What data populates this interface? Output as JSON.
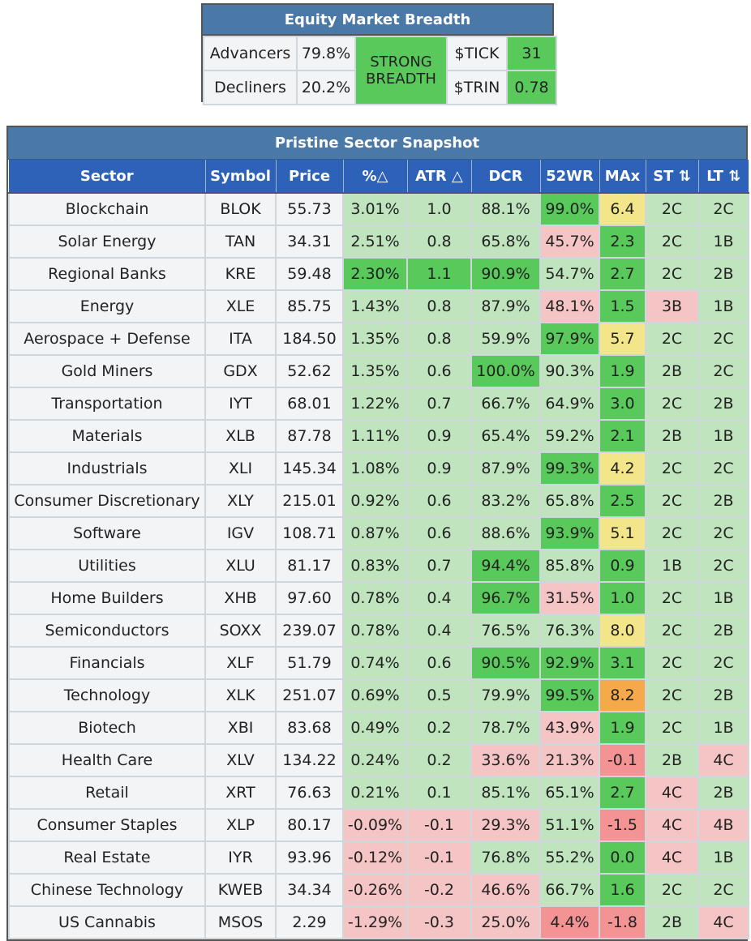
{
  "breadth": {
    "title": "Equity Market Breadth",
    "advancers_label": "Advancers",
    "advancers_value": "79.8%",
    "decliners_label": "Decliners",
    "decliners_value": "20.2%",
    "status_line1": "STRONG",
    "status_line2": "BREADTH",
    "tick_label": "$TICK",
    "tick_value": "31",
    "trin_label": "$TRIN",
    "trin_value": "0.78"
  },
  "sector": {
    "title": "Pristine Sector Snapshot",
    "columns": [
      "Sector",
      "Symbol",
      "Price",
      "%△",
      "ATR △",
      "DCR",
      "52WR",
      "MAx",
      "ST ⇅",
      "LT ⇅"
    ],
    "colors": {
      "light_green": "#c0e5be",
      "strong_green": "#58c95a",
      "light_red": "#f5c4c4",
      "strong_red": "#f39393",
      "yellow": "#f3e68a",
      "orange": "#f4a94a",
      "header_blue": "#2e62b8",
      "title_blue": "#4a79a8"
    },
    "rows": [
      {
        "sector": "Blockchain",
        "symbol": "BLOK",
        "price": "55.73",
        "pct": "3.01%",
        "atr": "1.0",
        "dcr": "88.1%",
        "wr": "99.0%",
        "max": "6.4",
        "st": "2C",
        "lt": "2C",
        "c": [
          "n",
          "n",
          "n",
          "g",
          "g",
          "g",
          "G",
          "y",
          "g",
          "g"
        ]
      },
      {
        "sector": "Solar Energy",
        "symbol": "TAN",
        "price": "34.31",
        "pct": "2.51%",
        "atr": "0.8",
        "dcr": "65.8%",
        "wr": "45.7%",
        "max": "2.3",
        "st": "2C",
        "lt": "1B",
        "c": [
          "n",
          "n",
          "n",
          "g",
          "g",
          "g",
          "r",
          "G",
          "g",
          "g"
        ]
      },
      {
        "sector": "Regional Banks",
        "symbol": "KRE",
        "price": "59.48",
        "pct": "2.30%",
        "atr": "1.1",
        "dcr": "90.9%",
        "wr": "54.7%",
        "max": "2.7",
        "st": "2C",
        "lt": "2B",
        "c": [
          "n",
          "n",
          "n",
          "G",
          "G",
          "G",
          "g",
          "G",
          "g",
          "g"
        ]
      },
      {
        "sector": "Energy",
        "symbol": "XLE",
        "price": "85.75",
        "pct": "1.43%",
        "atr": "0.8",
        "dcr": "87.9%",
        "wr": "48.1%",
        "max": "1.5",
        "st": "3B",
        "lt": "1B",
        "c": [
          "n",
          "n",
          "n",
          "g",
          "g",
          "g",
          "r",
          "G",
          "r",
          "g"
        ]
      },
      {
        "sector": "Aerospace + Defense",
        "symbol": "ITA",
        "price": "184.50",
        "pct": "1.35%",
        "atr": "0.8",
        "dcr": "59.9%",
        "wr": "97.9%",
        "max": "5.7",
        "st": "2C",
        "lt": "2C",
        "c": [
          "n",
          "n",
          "n",
          "g",
          "g",
          "g",
          "G",
          "y",
          "g",
          "g"
        ]
      },
      {
        "sector": "Gold Miners",
        "symbol": "GDX",
        "price": "52.62",
        "pct": "1.35%",
        "atr": "0.6",
        "dcr": "100.0%",
        "wr": "90.3%",
        "max": "1.9",
        "st": "2B",
        "lt": "2C",
        "c": [
          "n",
          "n",
          "n",
          "g",
          "g",
          "G",
          "g",
          "G",
          "g",
          "g"
        ]
      },
      {
        "sector": "Transportation",
        "symbol": "IYT",
        "price": "68.01",
        "pct": "1.22%",
        "atr": "0.7",
        "dcr": "66.7%",
        "wr": "64.9%",
        "max": "3.0",
        "st": "2C",
        "lt": "2B",
        "c": [
          "n",
          "n",
          "n",
          "g",
          "g",
          "g",
          "g",
          "G",
          "g",
          "g"
        ]
      },
      {
        "sector": "Materials",
        "symbol": "XLB",
        "price": "87.78",
        "pct": "1.11%",
        "atr": "0.9",
        "dcr": "65.4%",
        "wr": "59.2%",
        "max": "2.1",
        "st": "2B",
        "lt": "1B",
        "c": [
          "n",
          "n",
          "n",
          "g",
          "g",
          "g",
          "g",
          "G",
          "g",
          "g"
        ]
      },
      {
        "sector": "Industrials",
        "symbol": "XLI",
        "price": "145.34",
        "pct": "1.08%",
        "atr": "0.9",
        "dcr": "87.9%",
        "wr": "99.3%",
        "max": "4.2",
        "st": "2C",
        "lt": "2C",
        "c": [
          "n",
          "n",
          "n",
          "g",
          "g",
          "g",
          "G",
          "y",
          "g",
          "g"
        ]
      },
      {
        "sector": "Consumer Discretionary",
        "symbol": "XLY",
        "price": "215.01",
        "pct": "0.92%",
        "atr": "0.6",
        "dcr": "83.2%",
        "wr": "65.8%",
        "max": "2.5",
        "st": "2C",
        "lt": "2B",
        "c": [
          "n",
          "n",
          "n",
          "g",
          "g",
          "g",
          "g",
          "G",
          "g",
          "g"
        ]
      },
      {
        "sector": "Software",
        "symbol": "IGV",
        "price": "108.71",
        "pct": "0.87%",
        "atr": "0.6",
        "dcr": "88.6%",
        "wr": "93.9%",
        "max": "5.1",
        "st": "2C",
        "lt": "2C",
        "c": [
          "n",
          "n",
          "n",
          "g",
          "g",
          "g",
          "G",
          "y",
          "g",
          "g"
        ]
      },
      {
        "sector": "Utilities",
        "symbol": "XLU",
        "price": "81.17",
        "pct": "0.83%",
        "atr": "0.7",
        "dcr": "94.4%",
        "wr": "85.8%",
        "max": "0.9",
        "st": "1B",
        "lt": "2C",
        "c": [
          "n",
          "n",
          "n",
          "g",
          "g",
          "G",
          "g",
          "G",
          "g",
          "g"
        ]
      },
      {
        "sector": "Home Builders",
        "symbol": "XHB",
        "price": "97.60",
        "pct": "0.78%",
        "atr": "0.4",
        "dcr": "96.7%",
        "wr": "31.5%",
        "max": "1.0",
        "st": "2C",
        "lt": "1B",
        "c": [
          "n",
          "n",
          "n",
          "g",
          "g",
          "G",
          "r",
          "G",
          "g",
          "g"
        ]
      },
      {
        "sector": "Semiconductors",
        "symbol": "SOXX",
        "price": "239.07",
        "pct": "0.78%",
        "atr": "0.4",
        "dcr": "76.5%",
        "wr": "76.3%",
        "max": "8.0",
        "st": "2C",
        "lt": "2B",
        "c": [
          "n",
          "n",
          "n",
          "g",
          "g",
          "g",
          "g",
          "y",
          "g",
          "g"
        ]
      },
      {
        "sector": "Financials",
        "symbol": "XLF",
        "price": "51.79",
        "pct": "0.74%",
        "atr": "0.6",
        "dcr": "90.5%",
        "wr": "92.9%",
        "max": "3.1",
        "st": "2C",
        "lt": "2C",
        "c": [
          "n",
          "n",
          "n",
          "g",
          "g",
          "G",
          "G",
          "G",
          "g",
          "g"
        ]
      },
      {
        "sector": "Technology",
        "symbol": "XLK",
        "price": "251.07",
        "pct": "0.69%",
        "atr": "0.5",
        "dcr": "79.9%",
        "wr": "99.5%",
        "max": "8.2",
        "st": "2C",
        "lt": "2B",
        "c": [
          "n",
          "n",
          "n",
          "g",
          "g",
          "g",
          "G",
          "o",
          "g",
          "g"
        ]
      },
      {
        "sector": "Biotech",
        "symbol": "XBI",
        "price": "83.68",
        "pct": "0.49%",
        "atr": "0.2",
        "dcr": "78.7%",
        "wr": "43.9%",
        "max": "1.9",
        "st": "2C",
        "lt": "1B",
        "c": [
          "n",
          "n",
          "n",
          "g",
          "g",
          "g",
          "r",
          "G",
          "g",
          "g"
        ]
      },
      {
        "sector": "Health Care",
        "symbol": "XLV",
        "price": "134.22",
        "pct": "0.24%",
        "atr": "0.2",
        "dcr": "33.6%",
        "wr": "21.3%",
        "max": "-0.1",
        "st": "2B",
        "lt": "4C",
        "c": [
          "n",
          "n",
          "n",
          "g",
          "g",
          "r",
          "r",
          "R",
          "g",
          "r"
        ]
      },
      {
        "sector": "Retail",
        "symbol": "XRT",
        "price": "76.63",
        "pct": "0.21%",
        "atr": "0.1",
        "dcr": "85.1%",
        "wr": "65.1%",
        "max": "2.7",
        "st": "4C",
        "lt": "2B",
        "c": [
          "n",
          "n",
          "n",
          "g",
          "g",
          "g",
          "g",
          "G",
          "r",
          "g"
        ]
      },
      {
        "sector": "Consumer Staples",
        "symbol": "XLP",
        "price": "80.17",
        "pct": "-0.09%",
        "atr": "-0.1",
        "dcr": "29.3%",
        "wr": "51.1%",
        "max": "-1.5",
        "st": "4C",
        "lt": "4B",
        "c": [
          "n",
          "n",
          "n",
          "r",
          "r",
          "r",
          "g",
          "R",
          "r",
          "r"
        ]
      },
      {
        "sector": "Real Estate",
        "symbol": "IYR",
        "price": "93.96",
        "pct": "-0.12%",
        "atr": "-0.1",
        "dcr": "76.8%",
        "wr": "55.2%",
        "max": "0.0",
        "st": "4C",
        "lt": "1B",
        "c": [
          "n",
          "n",
          "n",
          "r",
          "r",
          "g",
          "g",
          "G",
          "r",
          "g"
        ]
      },
      {
        "sector": "Chinese Technology",
        "symbol": "KWEB",
        "price": "34.34",
        "pct": "-0.26%",
        "atr": "-0.2",
        "dcr": "46.6%",
        "wr": "66.7%",
        "max": "1.6",
        "st": "2C",
        "lt": "2C",
        "c": [
          "n",
          "n",
          "n",
          "r",
          "r",
          "r",
          "g",
          "G",
          "g",
          "g"
        ]
      },
      {
        "sector": "US Cannabis",
        "symbol": "MSOS",
        "price": "2.29",
        "pct": "-1.29%",
        "atr": "-0.3",
        "dcr": "25.0%",
        "wr": "4.4%",
        "max": "-1.8",
        "st": "2B",
        "lt": "4C",
        "c": [
          "n",
          "n",
          "n",
          "r",
          "r",
          "r",
          "R",
          "R",
          "g",
          "r"
        ]
      }
    ]
  }
}
